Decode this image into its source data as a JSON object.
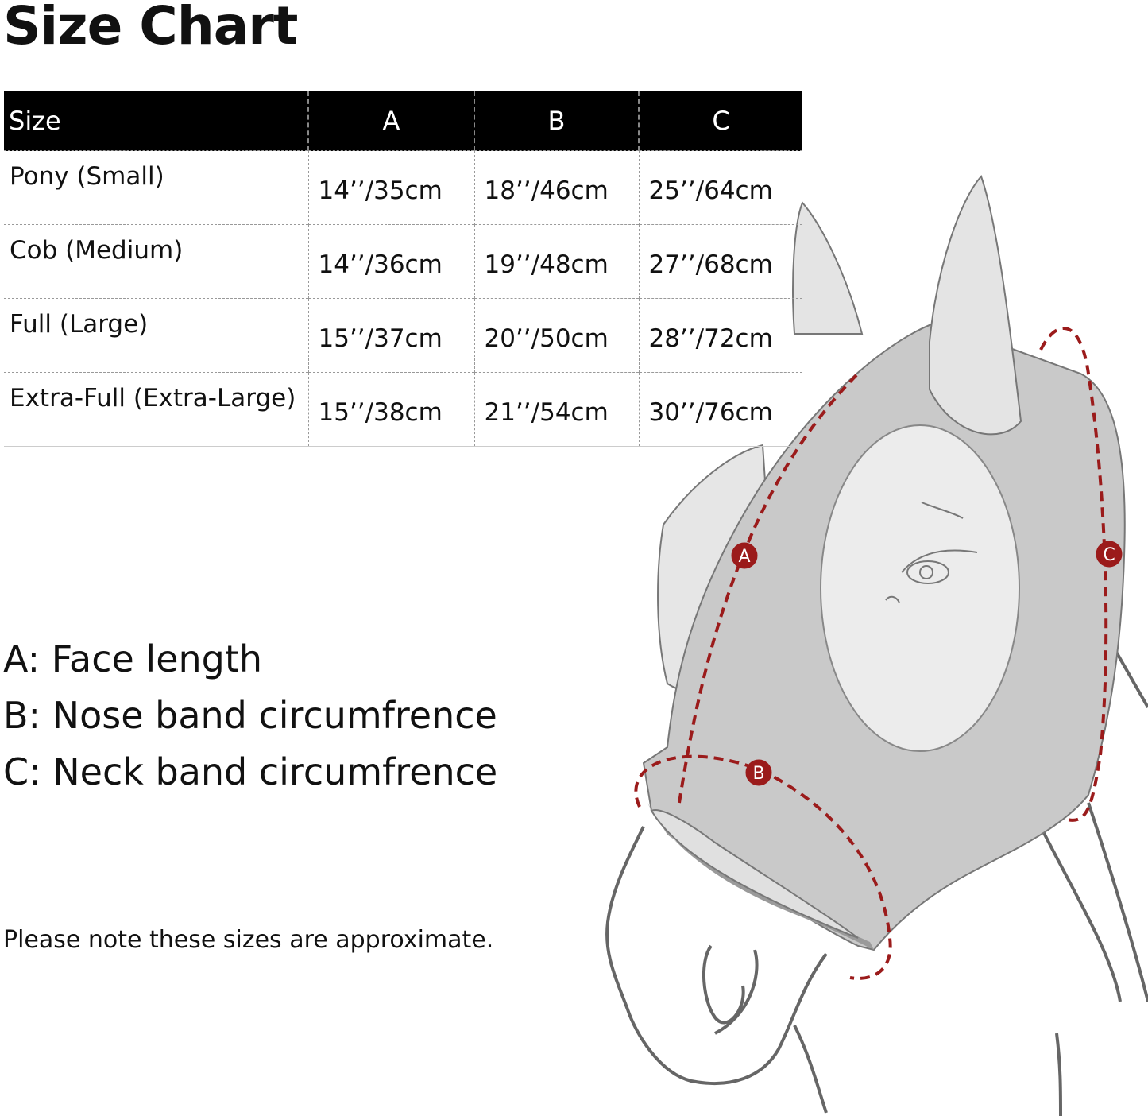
{
  "title": "Size Chart",
  "table": {
    "headers": [
      "Size",
      "A",
      "B",
      "C"
    ],
    "rows": [
      [
        "Pony (Small)",
        "14’’/35cm",
        "18’’/46cm",
        "25’’/64cm"
      ],
      [
        "Cob (Medium)",
        "14’’/36cm",
        "19’’/48cm",
        "27’’/68cm"
      ],
      [
        "Full (Large)",
        "15’’/37cm",
        "20’’/50cm",
        "28’’/72cm"
      ],
      [
        "Extra-Full (Extra-Large)",
        "15’’/38cm",
        "21’’/54cm",
        "30’’/76cm"
      ]
    ]
  },
  "legend": [
    "A: Face length",
    "B: Nose band circumfrence",
    "C: Neck band circumfrence"
  ],
  "note": "Please note these sizes are approximate.",
  "markers": {
    "a": "A",
    "b": "B",
    "c": "C"
  },
  "colors": {
    "header_bg": "#000000",
    "mask": "#c9c9c9",
    "measure": "#9b1b1b"
  }
}
